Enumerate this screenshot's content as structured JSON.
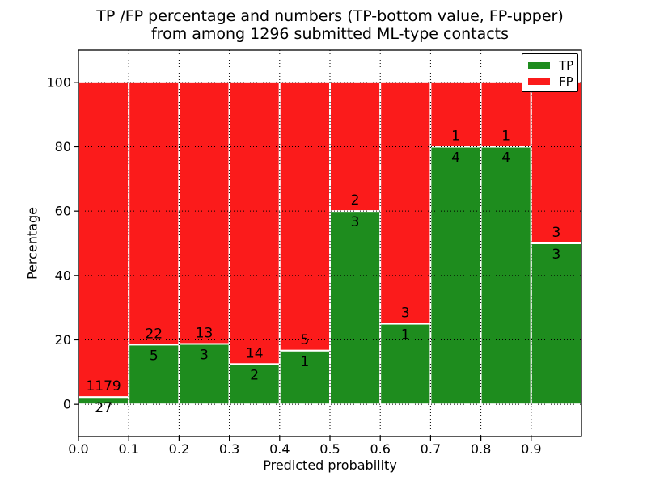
{
  "chart_data": {
    "type": "bar",
    "stacked": true,
    "title_lines": [
      "TP /FP percentage and numbers (TP-bottom value, FP-upper)",
      "from among 1296 submitted ML-type contacts"
    ],
    "xlabel": "Predicted probability",
    "ylabel": "Percentage",
    "xlim": [
      0.0,
      1.0
    ],
    "ylim": [
      -10,
      110
    ],
    "x_tick_values": [
      0.0,
      0.1,
      0.2,
      0.3,
      0.4,
      0.5,
      0.6,
      0.7,
      0.8,
      0.9
    ],
    "x_tick_labels": [
      "0.0",
      "0.1",
      "0.2",
      "0.3",
      "0.4",
      "0.5",
      "0.6",
      "0.7",
      "0.8",
      "0.9"
    ],
    "y_tick_values": [
      0,
      20,
      40,
      60,
      80,
      100
    ],
    "y_tick_labels": [
      "0",
      "20",
      "40",
      "60",
      "80",
      "100"
    ],
    "grid": "dotted",
    "grid_on": true,
    "legend_position": "upper right",
    "annotation_rule": "TP count below TP/FP boundary, FP count above boundary",
    "total_contacts": 1296,
    "bins": [
      {
        "x0": 0.0,
        "x1": 0.1,
        "tp": 27,
        "fp": 1179
      },
      {
        "x0": 0.1,
        "x1": 0.2,
        "tp": 5,
        "fp": 22
      },
      {
        "x0": 0.2,
        "x1": 0.3,
        "tp": 3,
        "fp": 13
      },
      {
        "x0": 0.3,
        "x1": 0.4,
        "tp": 2,
        "fp": 14
      },
      {
        "x0": 0.4,
        "x1": 0.5,
        "tp": 1,
        "fp": 5
      },
      {
        "x0": 0.5,
        "x1": 0.6,
        "tp": 3,
        "fp": 2
      },
      {
        "x0": 0.6,
        "x1": 0.7,
        "tp": 1,
        "fp": 3
      },
      {
        "x0": 0.7,
        "x1": 0.8,
        "tp": 4,
        "fp": 1
      },
      {
        "x0": 0.8,
        "x1": 0.9,
        "tp": 4,
        "fp": 1
      },
      {
        "x0": 0.9,
        "x1": 1.0,
        "tp": 3,
        "fp": 3
      }
    ],
    "series": [
      {
        "name": "TP",
        "color": "#1e8c1e"
      },
      {
        "name": "FP",
        "color": "#fb1b1b"
      }
    ]
  },
  "colors": {
    "tp": "#1e8c1e",
    "fp": "#fb1b1b",
    "bar_edge": "#ffffff",
    "grid": "#000000",
    "axes": "#000000",
    "text": "#000000",
    "background": "#ffffff"
  }
}
